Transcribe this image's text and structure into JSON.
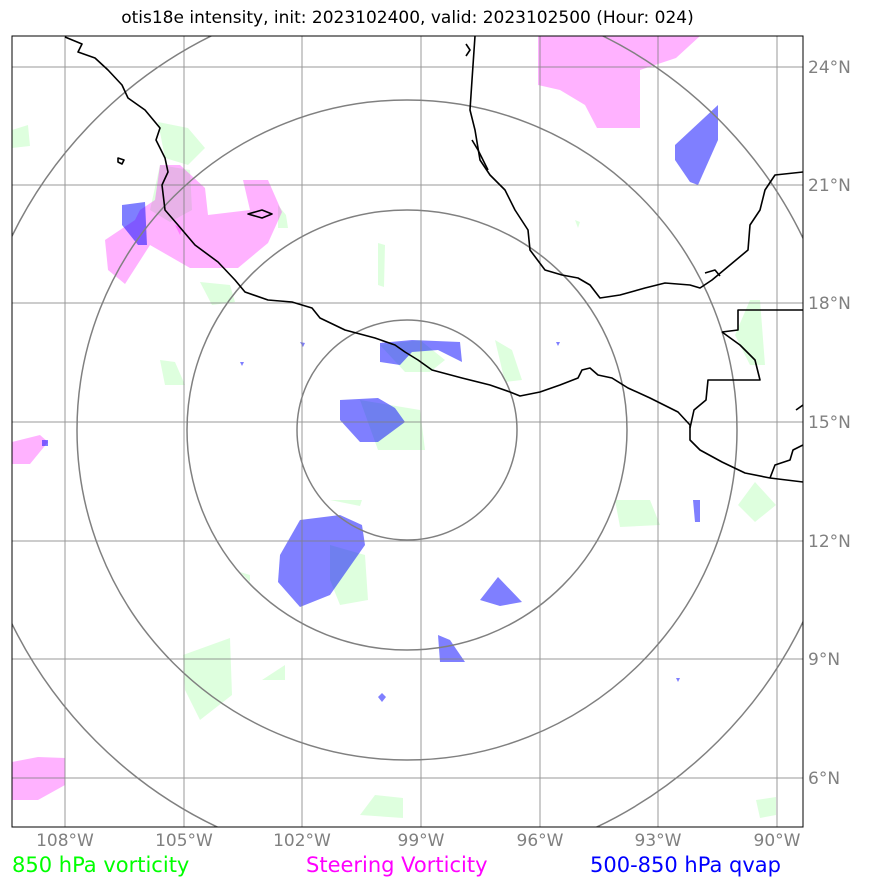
{
  "title": "otis18e intensity, init: 2023102400, valid: 2023102500 (Hour: 024)",
  "lat_labels": [
    "24°N",
    "21°N",
    "18°N",
    "15°N",
    "12°N",
    "9°N",
    "6°N"
  ],
  "lon_labels": [
    "108°W",
    "105°W",
    "102°W",
    "99°W",
    "96°W",
    "93°W",
    "90°W"
  ],
  "legend": {
    "green": "850 hPa vorticity",
    "magenta": "Steering Vorticity",
    "blue": "500-850 hPa qvap"
  },
  "colors": {
    "green": "#00ff00",
    "magenta": "#ff00ff",
    "blue": "#0000ff",
    "grid": "#808080",
    "coast": "#000000"
  },
  "map": {
    "projection": "lat-lon",
    "lat_range": [
      4.8,
      24.8
    ],
    "lon_range": [
      -109.0,
      -89.0
    ],
    "storm_center": {
      "lat": 14.9,
      "lon": -99.4
    },
    "range_ring_count": 4
  }
}
